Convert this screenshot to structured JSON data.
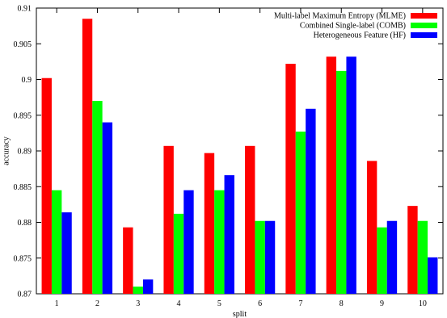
{
  "chart_data": {
    "type": "bar",
    "xlabel": "split",
    "ylabel": "accuracy",
    "ylim": [
      0.87,
      0.91
    ],
    "yticks": [
      "0.87",
      "0.875",
      "0.88",
      "0.885",
      "0.89",
      "0.895",
      "0.9",
      "0.905",
      "0.91"
    ],
    "categories": [
      "1",
      "2",
      "3",
      "4",
      "5",
      "6",
      "7",
      "8",
      "9",
      "10"
    ],
    "legend_position": "top-right",
    "grid": false,
    "series": [
      {
        "name": "Multi-label Maximum Entropy (MLME)",
        "color": "#ff0000",
        "values": [
          0.9002,
          0.9085,
          0.8793,
          0.8907,
          0.8897,
          0.8907,
          0.9022,
          0.9032,
          0.8886,
          0.8823
        ]
      },
      {
        "name": "Combined Single-label (COMB)",
        "color": "#00ff00",
        "values": [
          0.8845,
          0.897,
          0.871,
          0.8812,
          0.8845,
          0.8802,
          0.8927,
          0.9012,
          0.8793,
          0.8802
        ]
      },
      {
        "name": "Heterogeneous Feature (HF)",
        "color": "#0000ff",
        "values": [
          0.8814,
          0.894,
          0.872,
          0.8845,
          0.8866,
          0.8802,
          0.8959,
          0.9032,
          0.8802,
          0.8751
        ]
      }
    ]
  }
}
